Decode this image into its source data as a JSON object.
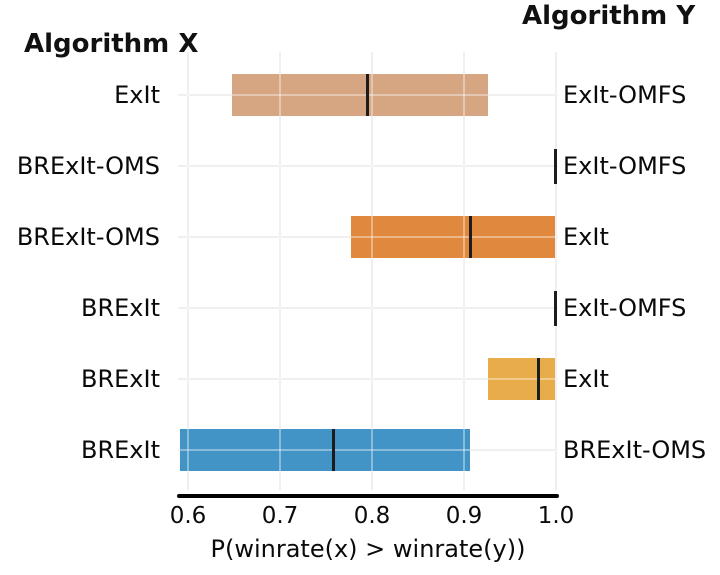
{
  "header": {
    "algorithm_x_title": "Algorithm X",
    "algorithm_y_title": "Algorithm Y"
  },
  "chart_data": {
    "type": "bar",
    "subtype": "horizontal-credible-interval",
    "title": "",
    "left_header": "Algorithm X",
    "right_header": "Algorithm Y",
    "xlabel": "P(winrate(x) > winrate(y))",
    "ylabel": "",
    "xlim": [
      0.585,
      1.005
    ],
    "xticks": [
      0.6,
      0.7,
      0.8,
      0.9,
      1.0
    ],
    "xtick_labels": [
      "0.6",
      "0.7",
      "0.8",
      "0.9",
      "1.0"
    ],
    "grid": true,
    "legend": "none",
    "rows": [
      {
        "algorithm_x": "ExIt",
        "algorithm_y": "ExIt-OMFS",
        "interval_low": 0.648,
        "interval_high": 0.926,
        "median": 0.795,
        "color": "#d6a581"
      },
      {
        "algorithm_x": "BRExIt-OMS",
        "algorithm_y": "ExIt-OMFS",
        "interval_low": 0.998,
        "interval_high": 1.0,
        "median": 0.999,
        "color": null
      },
      {
        "algorithm_x": "BRExIt-OMS",
        "algorithm_y": "ExIt",
        "interval_low": 0.777,
        "interval_high": 0.999,
        "median": 0.907,
        "color": "#e0893e"
      },
      {
        "algorithm_x": "BRExIt",
        "algorithm_y": "ExIt-OMFS",
        "interval_low": 0.998,
        "interval_high": 1.0,
        "median": 0.999,
        "color": null
      },
      {
        "algorithm_x": "BRExIt",
        "algorithm_y": "ExIt",
        "interval_low": 0.926,
        "interval_high": 0.999,
        "median": 0.981,
        "color": "#e9ac4a"
      },
      {
        "algorithm_x": "BRExIt",
        "algorithm_y": "BRExIt-OMS",
        "interval_low": 0.591,
        "interval_high": 0.907,
        "median": 0.758,
        "color": "#4294c6"
      }
    ],
    "colors": {
      "median_line": "#1c1c1c",
      "grid": "#e7e7e7",
      "axis_line": "#000000",
      "text": "#000000",
      "background": "#ffffff"
    }
  }
}
